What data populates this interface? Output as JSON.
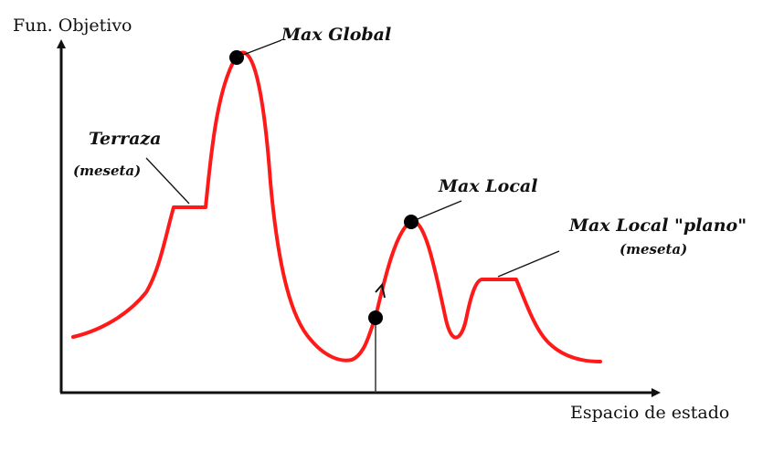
{
  "axes": {
    "y_title": "Fun. Objetivo",
    "x_title": "Espacio de estado"
  },
  "annotations": {
    "max_global": "Max Global",
    "terraza": "Terraza",
    "terraza_sub": "(meseta)",
    "max_local": "Max Local",
    "max_local_plano": "Max Local \"plano\"",
    "max_local_plano_sub": "(meseta)"
  },
  "colors": {
    "curve": "#ff1a1a",
    "axis": "#111111",
    "points": "#000000"
  }
}
